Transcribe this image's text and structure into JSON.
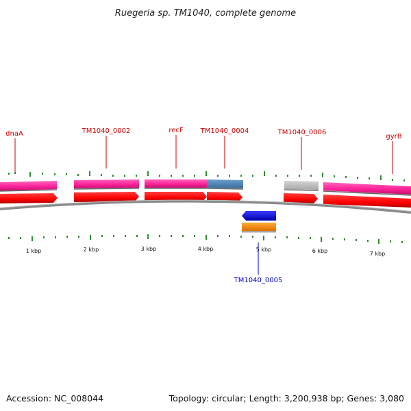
{
  "title": "Ruegeria sp. TM1040, complete genome",
  "accession_text": "Accession: NC_008044",
  "topology_text": "Topology: circular; Length: 3,200,938 bp; Genes: 3,080",
  "genes_above": [
    {
      "label": "dnaA",
      "color": "#cc0000"
    },
    {
      "label": "TM1040_0002",
      "color": "#cc0000"
    },
    {
      "label": "recF",
      "color": "#cc0000"
    },
    {
      "label": "TM1040_0004",
      "color": "#cc0000"
    },
    {
      "label": "TM1040_0006",
      "color": "#cc0000"
    },
    {
      "label": "gyrB",
      "color": "#cc0000"
    }
  ],
  "genes_below": [
    {
      "label": "TM1040_0005",
      "color": "#0000cc"
    }
  ],
  "scale_labels": [
    "1 kbp",
    "2 kbp",
    "3 kbp",
    "4 kbp",
    "5 kbp",
    "6 kbp",
    "7 kbp"
  ],
  "colors": {
    "cds_forward": "#ff0000",
    "gene_forward": "#ff3399",
    "cds_reverse": "#0000ff",
    "gene_reverse": "#ff8800",
    "gene_highlight": "#4f86b8",
    "pseudo_gene": "#c0c0c0",
    "backbone": "#888888",
    "tick": "#2d8c2d"
  }
}
